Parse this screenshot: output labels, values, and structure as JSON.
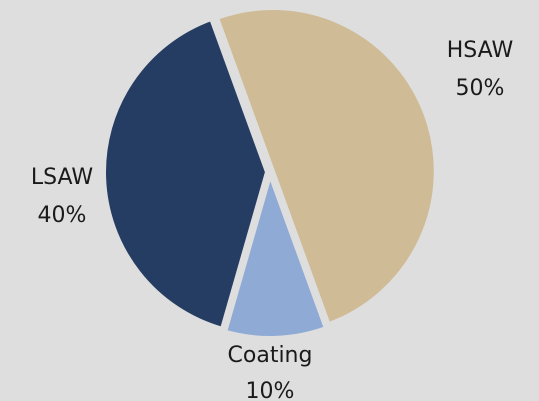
{
  "chart_data": {
    "type": "pie",
    "slices": [
      {
        "label": "HSAW",
        "value": 50,
        "value_label": "50%",
        "color": "#cfbb95"
      },
      {
        "label": "Coating",
        "value": 10,
        "value_label": "10%",
        "color": "#8eaad5"
      },
      {
        "label": "LSAW",
        "value": 40,
        "value_label": "40%",
        "color": "#263d63"
      }
    ],
    "start_angle_deg": -20,
    "exploded": true,
    "separator_color": "#dedede",
    "background": "#dedede",
    "legend": "none"
  }
}
